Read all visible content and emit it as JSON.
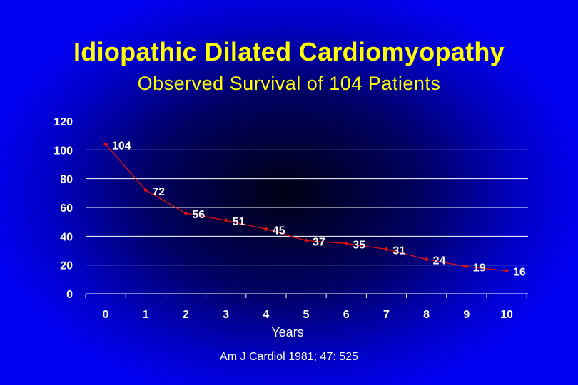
{
  "slide": {
    "title": "Idiopathic Dilated Cardiomyopathy",
    "subtitle": "Observed Survival of 104 Patients",
    "citation": "Am J Cardiol 1981; 47: 525"
  },
  "colors": {
    "title": "#ffff00",
    "series": "#e01010",
    "gridline": "#ffffff",
    "text": "#ffffff"
  },
  "chart_data": {
    "type": "line",
    "title": "Idiopathic Dilated Cardiomyopathy",
    "subtitle": "Observed Survival of 104 Patients",
    "xlabel": "Years",
    "ylabel": "",
    "x": [
      0,
      1,
      2,
      3,
      4,
      5,
      6,
      7,
      8,
      9,
      10
    ],
    "series": [
      {
        "values": [
          104,
          72,
          56,
          51,
          45,
          37,
          35,
          31,
          24,
          19,
          16
        ]
      }
    ],
    "ylim": [
      0,
      120
    ],
    "yticks": [
      0,
      20,
      40,
      60,
      80,
      100,
      120
    ],
    "grid": true,
    "legend": "none",
    "data_labels": true
  }
}
